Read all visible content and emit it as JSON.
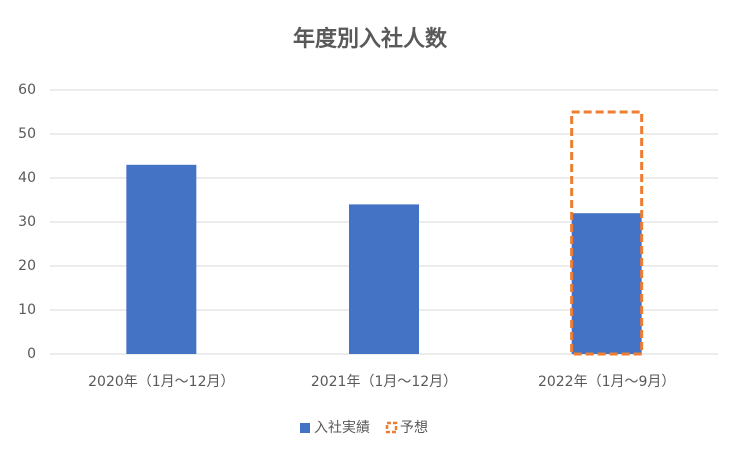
{
  "chart_data": {
    "type": "bar",
    "title": "年度別入社人数",
    "categories": [
      "2020年（1月～12月）",
      "2021年（1月～12月）",
      "2022年（1月～9月）"
    ],
    "series": [
      {
        "name": "入社実績",
        "color": "#4472c4",
        "style": "solid",
        "values": [
          43,
          34,
          32
        ]
      },
      {
        "name": "予想",
        "color": "#ed7d31",
        "style": "dashed-outline",
        "values": [
          null,
          null,
          55
        ]
      }
    ],
    "ylim": [
      0,
      60
    ],
    "yticks": [
      0,
      10,
      20,
      30,
      40,
      50,
      60
    ],
    "grid": true,
    "legend": "bottom"
  }
}
